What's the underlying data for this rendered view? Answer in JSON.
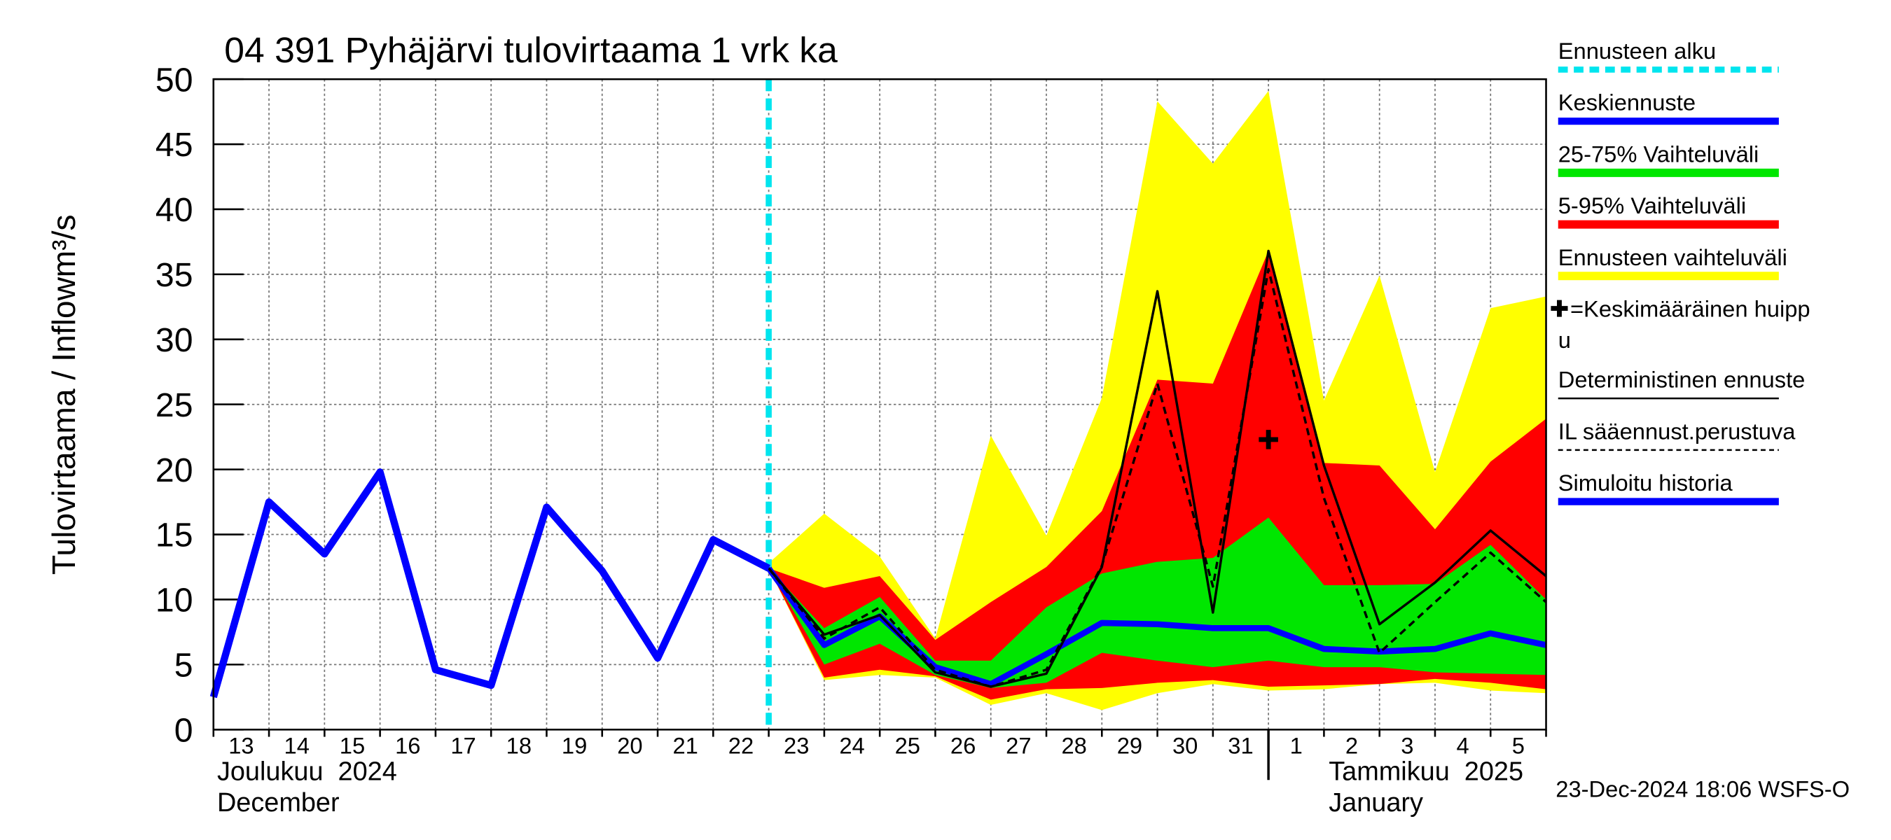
{
  "chart_data": {
    "type": "line",
    "title": "04 391 Pyhäjärvi tulovirtaama 1 vrk ka",
    "y_label": "Tulovirtaama / Inflow",
    "y_unit": "m³/s",
    "categories": [
      "13",
      "14",
      "15",
      "16",
      "17",
      "18",
      "19",
      "20",
      "21",
      "22",
      "23",
      "24",
      "25",
      "26",
      "27",
      "28",
      "29",
      "30",
      "31",
      "1",
      "2",
      "3",
      "4",
      "5",
      null
    ],
    "month_labels": [
      "Joulukuu  2024",
      "December",
      "Tammikuu  2025",
      "January"
    ],
    "month_break": "1",
    "forecast_start": "23",
    "forecast_start_label": "Ennusteen alku",
    "forecast_start_color": "#00e5ee",
    "timestamp": "23-Dec-2024 18:06 WSFS-O",
    "ylim": [
      0,
      50
    ],
    "yticks": [
      0,
      5,
      10,
      15,
      20,
      25,
      30,
      35,
      40,
      45,
      50
    ],
    "grid": true,
    "series": [
      {
        "name": "Keskiennuste",
        "color": "#0000ff",
        "values": [
          null,
          null,
          null,
          null,
          null,
          null,
          null,
          null,
          null,
          null,
          12.4,
          6.5,
          8.7,
          4.8,
          3.5,
          5.8,
          8.2,
          8.1,
          7.8,
          7.8,
          6.2,
          6.0,
          6.2,
          7.4,
          6.5
        ]
      },
      {
        "name": "25-75% Vaihteluväli",
        "color": "#00e600",
        "upper": [
          null,
          null,
          null,
          null,
          null,
          null,
          null,
          null,
          null,
          null,
          12.4,
          7.8,
          10.2,
          5.3,
          5.3,
          9.4,
          12.0,
          12.9,
          13.2,
          16.3,
          11.1,
          11.1,
          11.2,
          14.2,
          10.0
        ],
        "lower": [
          null,
          null,
          null,
          null,
          null,
          null,
          null,
          null,
          null,
          null,
          12.4,
          5.0,
          6.6,
          4.2,
          3.2,
          3.6,
          5.9,
          5.3,
          4.8,
          5.3,
          4.8,
          4.8,
          4.4,
          4.3,
          4.2
        ]
      },
      {
        "name": "5-95% Vaihteluväli",
        "color": "#ff0000",
        "upper": [
          null,
          null,
          null,
          null,
          null,
          null,
          null,
          null,
          null,
          null,
          12.4,
          10.9,
          11.8,
          6.9,
          9.8,
          12.5,
          16.8,
          26.9,
          26.6,
          36.8,
          20.5,
          20.3,
          15.4,
          20.6,
          23.9
        ],
        "lower": [
          null,
          null,
          null,
          null,
          null,
          null,
          null,
          null,
          null,
          null,
          12.4,
          4.0,
          4.6,
          4.1,
          2.3,
          3.1,
          3.2,
          3.6,
          3.8,
          3.3,
          3.4,
          3.5,
          3.9,
          3.6,
          3.1
        ]
      },
      {
        "name": "Ennusteen vaihteluväli",
        "color": "#ffff00",
        "upper": [
          null,
          null,
          null,
          null,
          null,
          null,
          null,
          null,
          null,
          null,
          12.8,
          16.6,
          13.3,
          7.0,
          22.6,
          14.9,
          25.5,
          48.3,
          43.5,
          49.1,
          25.3,
          34.9,
          19.8,
          32.4,
          33.3
        ],
        "lower": [
          null,
          null,
          null,
          null,
          null,
          null,
          null,
          null,
          null,
          null,
          12.4,
          3.8,
          4.2,
          4.0,
          1.9,
          2.8,
          1.5,
          2.8,
          3.5,
          3.0,
          3.1,
          3.5,
          3.6,
          3.0,
          2.8
        ]
      },
      {
        "name": "=Keskimääräinen huippu",
        "color": "#000000",
        "marker": "+",
        "values": [
          null,
          null,
          null,
          null,
          null,
          null,
          null,
          null,
          null,
          null,
          null,
          null,
          null,
          null,
          null,
          null,
          null,
          null,
          null,
          22.3,
          null,
          null,
          null,
          null,
          null
        ]
      },
      {
        "name": "Deterministinen ennuste",
        "color": "#000000",
        "values": [
          null,
          null,
          null,
          null,
          null,
          null,
          null,
          null,
          null,
          14.6,
          12.4,
          7.3,
          8.8,
          4.4,
          3.3,
          4.3,
          12.5,
          33.7,
          9.0,
          36.8,
          20.3,
          8.1,
          11.3,
          15.3,
          11.8
        ]
      },
      {
        "name": "IL sääennust.perustuva",
        "color": "#000000",
        "dashed": true,
        "values": [
          null,
          null,
          null,
          null,
          null,
          null,
          null,
          null,
          null,
          null,
          12.4,
          7.0,
          9.4,
          4.6,
          3.3,
          4.6,
          12.6,
          26.6,
          11.0,
          35.4,
          17.8,
          5.9,
          9.8,
          13.6,
          9.8
        ]
      },
      {
        "name": "Simuloitu historia",
        "color": "#0000ff",
        "values": [
          2.5,
          17.5,
          13.5,
          19.8,
          4.6,
          3.4,
          17.1,
          12.2,
          5.5,
          14.6,
          12.4,
          null,
          null,
          null,
          null,
          null,
          null,
          null,
          null,
          null,
          null,
          null,
          null,
          null,
          null
        ]
      }
    ]
  }
}
